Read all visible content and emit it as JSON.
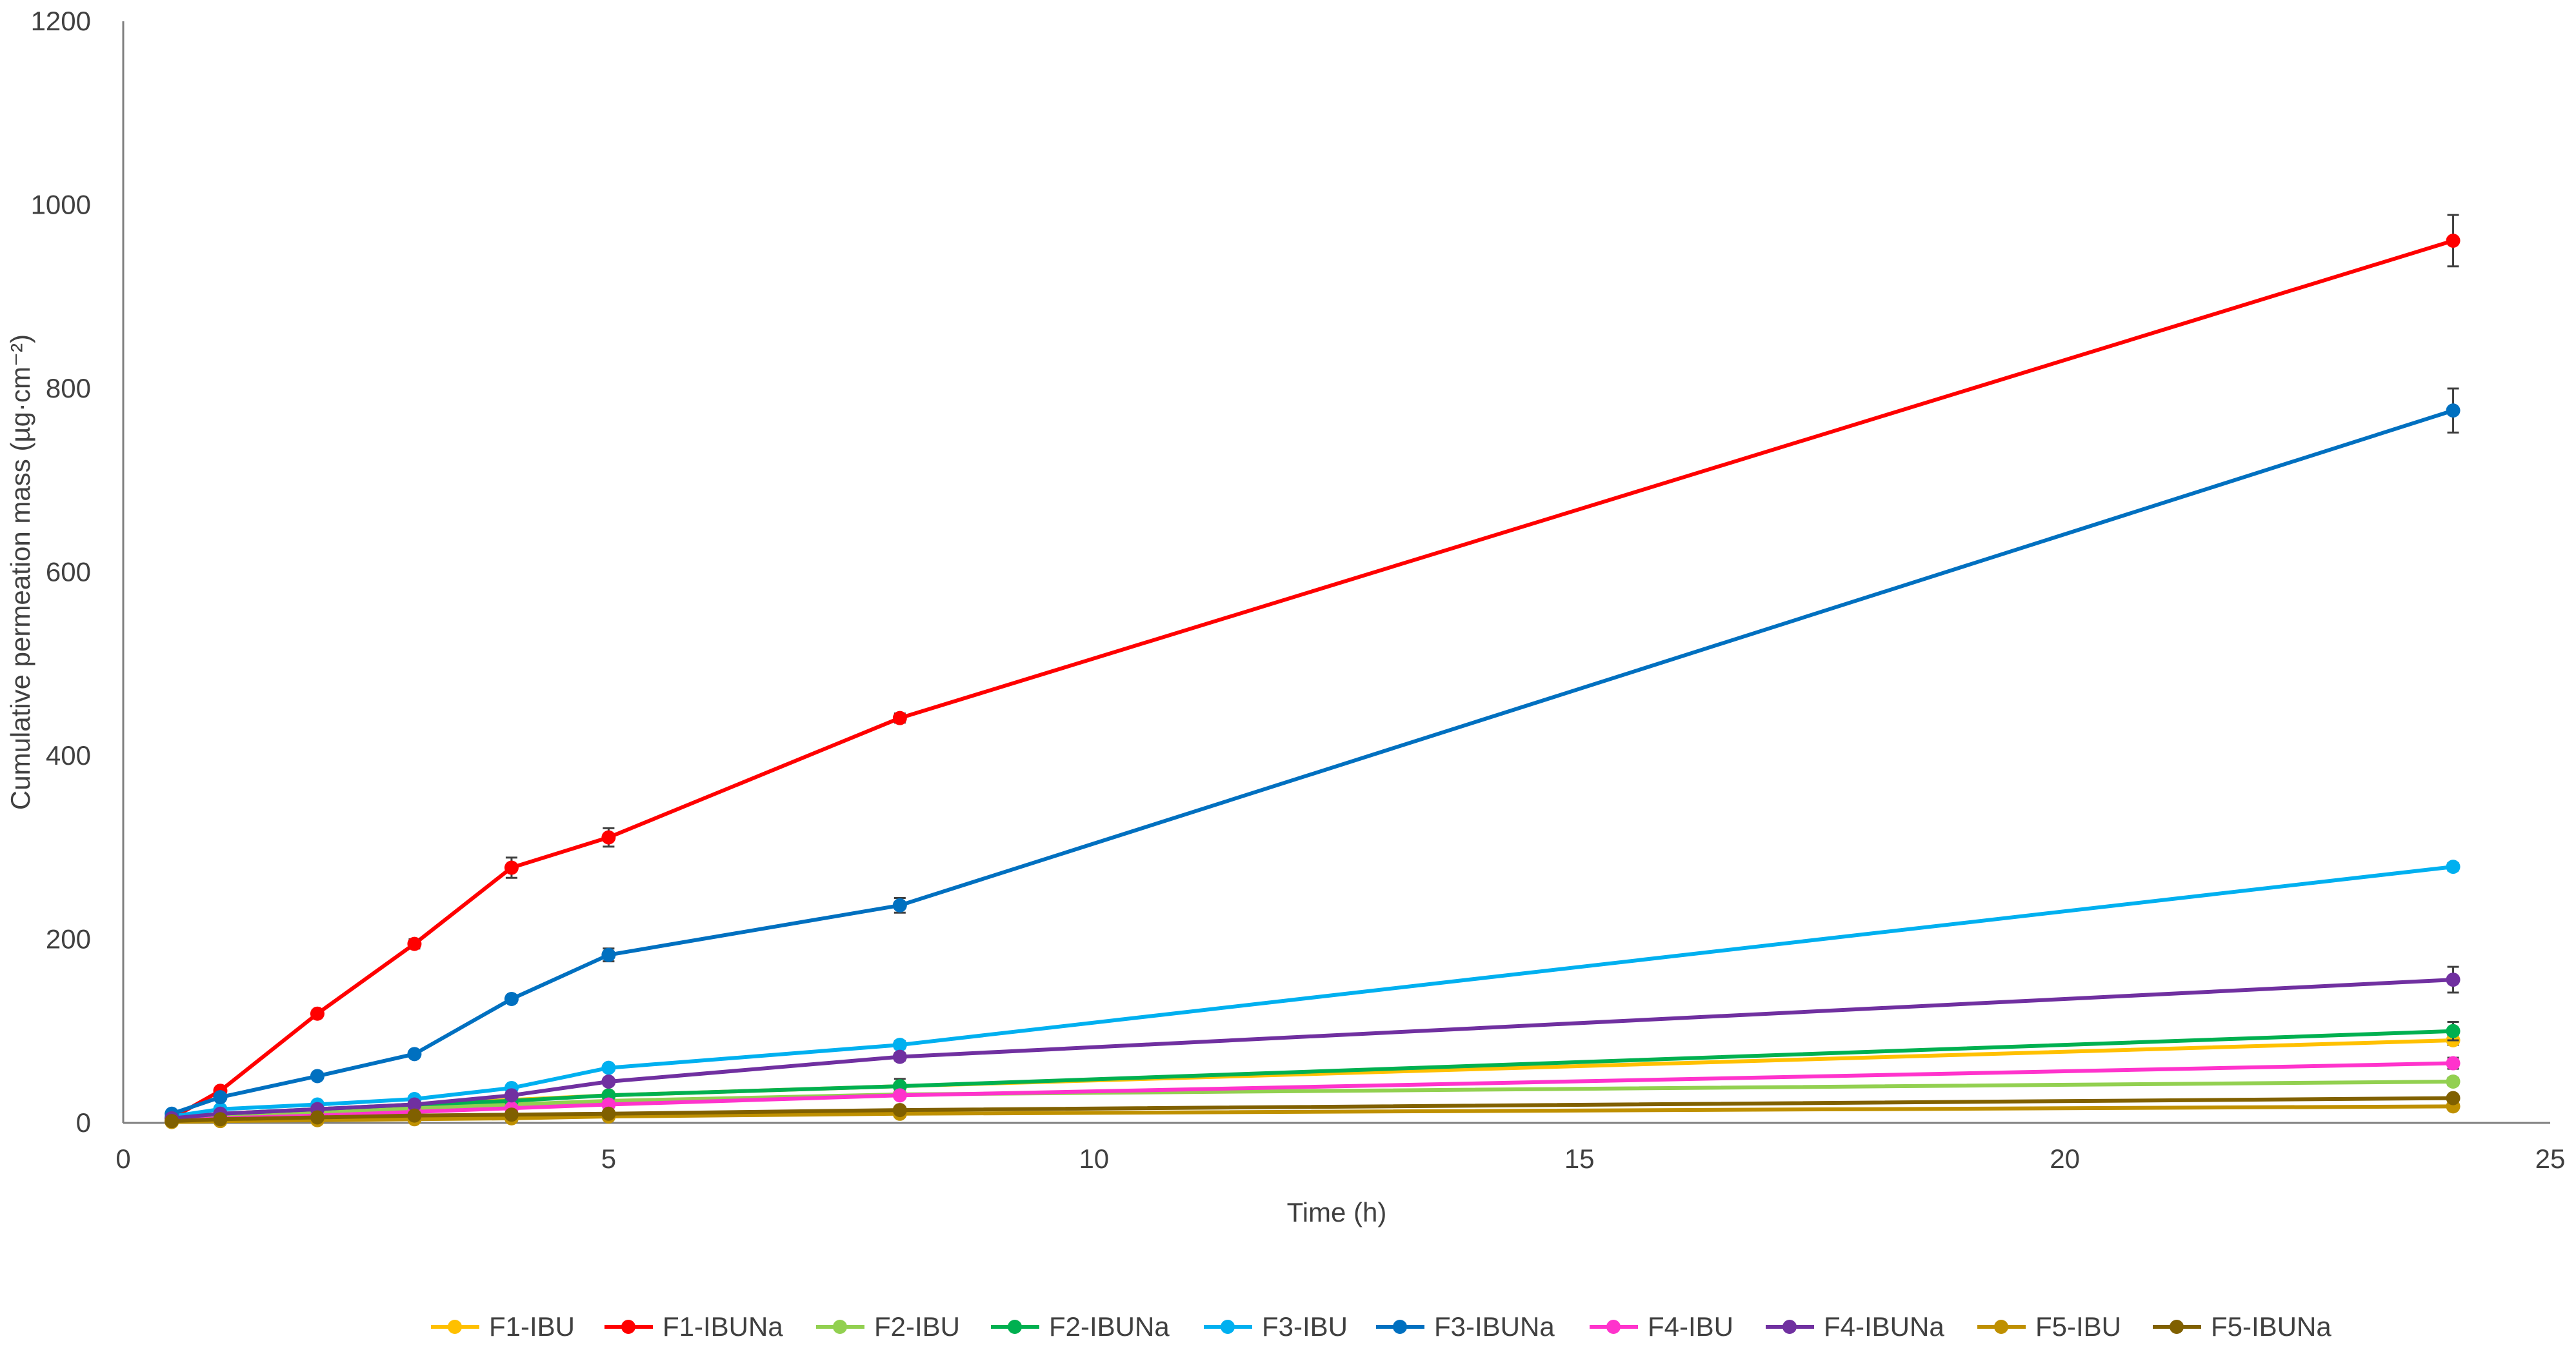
{
  "chart_data": {
    "type": "line",
    "title": "",
    "xlabel": "Time (h)",
    "ylabel": "Cumulative permeation mass (µg·cm⁻²)",
    "xlim": [
      0,
      25
    ],
    "ylim": [
      0,
      1200
    ],
    "xticks": [
      0,
      5,
      10,
      15,
      20,
      25
    ],
    "yticks": [
      0,
      200,
      400,
      600,
      800,
      1000,
      1200
    ],
    "grid": false,
    "legend_position": "bottom",
    "x": [
      0.5,
      1,
      2,
      3,
      4,
      5,
      8,
      24
    ],
    "series": [
      {
        "name": "F1-IBU",
        "color": "#ffc000",
        "values": [
          2,
          8,
          14,
          20,
          25,
          30,
          40,
          90
        ],
        "errors": [
          1,
          1,
          1,
          1,
          2,
          2,
          3,
          5
        ]
      },
      {
        "name": "F1-IBUNa",
        "color": "#ff0000",
        "values": [
          5,
          35,
          119,
          195,
          278,
          311,
          441,
          961
        ],
        "errors": [
          1,
          2,
          4,
          5,
          11,
          10,
          5,
          28
        ]
      },
      {
        "name": "F2-IBU",
        "color": "#92d050",
        "values": [
          2,
          6,
          12,
          16,
          20,
          24,
          31,
          45
        ],
        "errors": [
          1,
          1,
          1,
          1,
          2,
          2,
          3,
          4
        ]
      },
      {
        "name": "F2-IBUNa",
        "color": "#00b050",
        "values": [
          5,
          10,
          15,
          20,
          24,
          30,
          40,
          100
        ],
        "errors": [
          1,
          1,
          2,
          2,
          3,
          4,
          8,
          10
        ]
      },
      {
        "name": "F3-IBU",
        "color": "#00b0f0",
        "values": [
          7,
          15,
          20,
          26,
          38,
          60,
          85,
          279
        ],
        "errors": [
          1,
          1,
          2,
          2,
          3,
          3,
          4,
          4
        ]
      },
      {
        "name": "F3-IBUNa",
        "color": "#0070c0",
        "values": [
          10,
          28,
          51,
          75,
          135,
          183,
          237,
          776
        ],
        "errors": [
          1,
          2,
          3,
          3,
          4,
          7,
          8,
          24
        ]
      },
      {
        "name": "F4-IBU",
        "color": "#ff33cc",
        "values": [
          2,
          5,
          8,
          12,
          16,
          20,
          30,
          65
        ],
        "errors": [
          1,
          1,
          1,
          1,
          1,
          2,
          3,
          6
        ]
      },
      {
        "name": "F4-IBUNa",
        "color": "#7030a0",
        "values": [
          5,
          10,
          15,
          20,
          30,
          45,
          72,
          156
        ],
        "errors": [
          1,
          1,
          1,
          2,
          2,
          3,
          4,
          14
        ]
      },
      {
        "name": "F5-IBU",
        "color": "#bf9000",
        "values": [
          1,
          2,
          3,
          4,
          5,
          7,
          10,
          18
        ],
        "errors": [
          0.5,
          0.5,
          0.5,
          1,
          1,
          1,
          1,
          2
        ]
      },
      {
        "name": "F5-IBUNa",
        "color": "#806000",
        "values": [
          2,
          4,
          6,
          8,
          9,
          10,
          14,
          27
        ],
        "errors": [
          0.5,
          0.5,
          1,
          1,
          1,
          1,
          1,
          3
        ]
      }
    ]
  }
}
